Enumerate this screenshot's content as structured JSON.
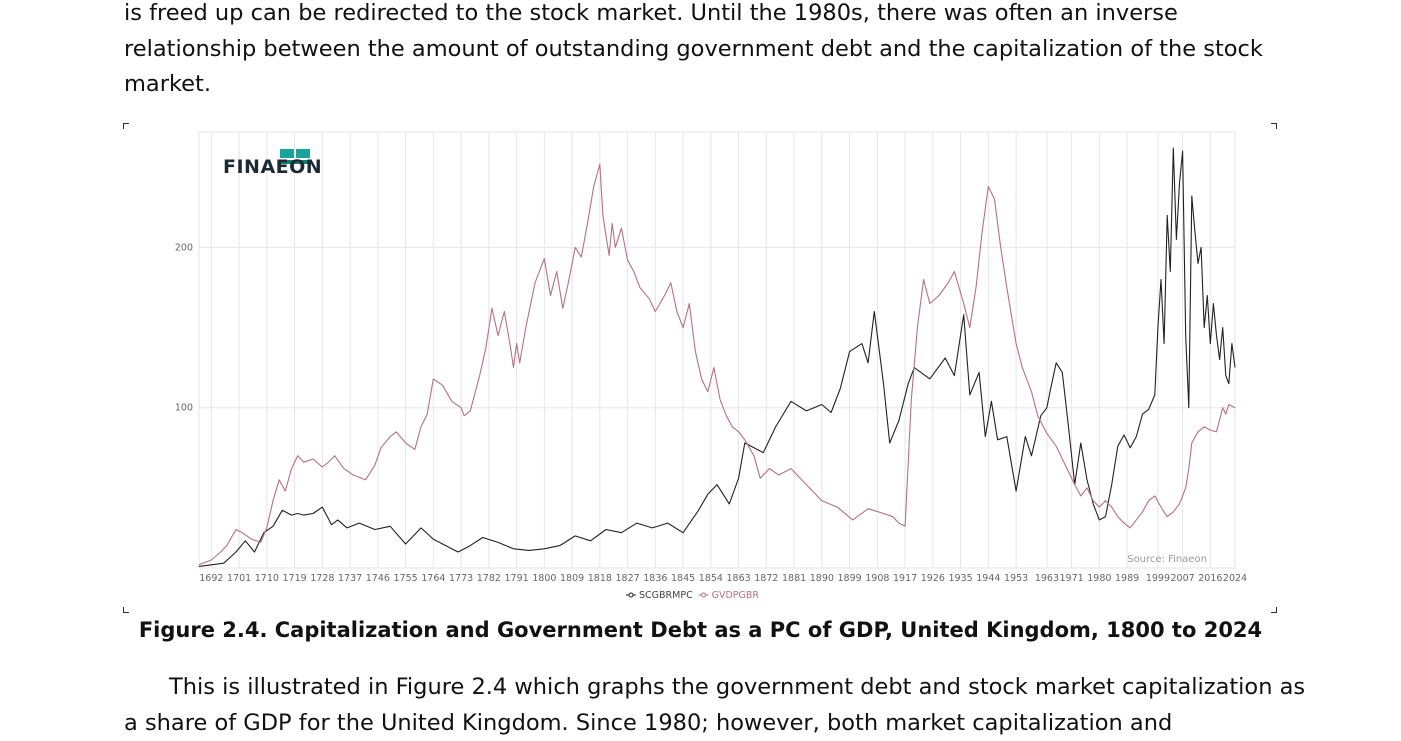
{
  "document": {
    "top_paragraph_lines": [
      "is freed up can be redirected to the stock market.  Until the 1980s, there was often an inverse",
      "relationship between the amount of outstanding government debt and the capitalization of the stock",
      "market."
    ],
    "caption": "Figure 2.4. Capitalization and Government Debt as a PC of GDP, United Kingdom, 1800 to 2024",
    "bottom_paragraph_lines": [
      "This is illustrated in Figure 2.4 which graphs the government debt and stock market capitalization as",
      "a share of GDP for the United Kingdom. Since 1980; however, both market capitalization and"
    ]
  },
  "figure": {
    "logo_text": "FINAEON",
    "source_note": "Source: Finaeon"
  },
  "chart_data": {
    "type": "line",
    "title": "",
    "xlabel": "",
    "ylabel": "",
    "xlim": [
      1688,
      2024
    ],
    "ylim": [
      0,
      272
    ],
    "y_ticks": [
      100,
      200
    ],
    "x_ticks": [
      "1692",
      "1701",
      "1710",
      "1719",
      "1728",
      "1737",
      "1746",
      "1755",
      "1764",
      "1773",
      "1782",
      "1791",
      "1800",
      "1809",
      "1818",
      "1827",
      "1836",
      "1845",
      "1854",
      "1863",
      "1872",
      "1881",
      "1890",
      "1899",
      "1908",
      "1917",
      "1926",
      "1935",
      "1944",
      "1953",
      "1963",
      "1971",
      "1980",
      "1989",
      "1999",
      "2007",
      "2016",
      "2024"
    ],
    "grid": true,
    "legend_position": "bottom-center",
    "series": [
      {
        "name": "SCGBRMPC",
        "color": "#222222",
        "x": [
          1688,
          1692,
          1696,
          1700,
          1703,
          1706,
          1709,
          1712,
          1715,
          1718,
          1720,
          1722,
          1725,
          1728,
          1731,
          1733,
          1736,
          1740,
          1745,
          1750,
          1755,
          1760,
          1764,
          1768,
          1772,
          1776,
          1780,
          1785,
          1790,
          1795,
          1800,
          1805,
          1810,
          1815,
          1820,
          1825,
          1830,
          1835,
          1840,
          1845,
          1850,
          1853,
          1856,
          1860,
          1863,
          1865,
          1868,
          1871,
          1875,
          1880,
          1885,
          1890,
          1893,
          1896,
          1899,
          1903,
          1905,
          1907,
          1910,
          1912,
          1915,
          1918,
          1920,
          1925,
          1930,
          1933,
          1936,
          1938,
          1941,
          1943,
          1945,
          1947,
          1950,
          1953,
          1956,
          1958,
          1961,
          1963,
          1964,
          1966,
          1968,
          1970,
          1972,
          1974,
          1976,
          1978,
          1980,
          1982,
          1984,
          1986,
          1988,
          1990,
          1992,
          1994,
          1996,
          1998,
          1999,
          2000,
          2001,
          2002,
          2003,
          2004,
          2005,
          2006,
          2007,
          2008,
          2009,
          2010,
          2011,
          2012,
          2013,
          2014,
          2015,
          2016,
          2017,
          2018,
          2019,
          2020,
          2021,
          2022,
          2023,
          2024
        ],
        "values": [
          1,
          2,
          3,
          10,
          17,
          10,
          22,
          26,
          36,
          33,
          34,
          33,
          34,
          38,
          27,
          30,
          25,
          28,
          24,
          26,
          15,
          25,
          18,
          14,
          10,
          14,
          19,
          16,
          12,
          11,
          12,
          14,
          20,
          17,
          24,
          22,
          28,
          25,
          28,
          22,
          36,
          46,
          52,
          40,
          56,
          78,
          75,
          72,
          88,
          104,
          98,
          102,
          97,
          112,
          135,
          140,
          128,
          160,
          115,
          78,
          92,
          115,
          125,
          118,
          131,
          120,
          158,
          108,
          122,
          82,
          104,
          80,
          82,
          48,
          82,
          70,
          95,
          100,
          110,
          128,
          122,
          88,
          52,
          78,
          55,
          40,
          30,
          32,
          52,
          76,
          83,
          75,
          82,
          96,
          99,
          108,
          150,
          180,
          140,
          220,
          185,
          262,
          205,
          240,
          260,
          145,
          100,
          232,
          210,
          190,
          200,
          150,
          170,
          140,
          165,
          145,
          130,
          150,
          120,
          115,
          140,
          125
        ]
      },
      {
        "name": "GVDPGBR",
        "color": "#b5727f",
        "x": [
          1688,
          1692,
          1695,
          1697,
          1700,
          1702,
          1705,
          1708,
          1710,
          1712,
          1714,
          1716,
          1718,
          1720,
          1722,
          1725,
          1728,
          1730,
          1732,
          1735,
          1738,
          1742,
          1745,
          1747,
          1750,
          1752,
          1755,
          1758,
          1760,
          1762,
          1764,
          1767,
          1770,
          1773,
          1774,
          1776,
          1779,
          1781,
          1783,
          1785,
          1787,
          1789,
          1790,
          1791,
          1792,
          1794,
          1797,
          1800,
          1802,
          1804,
          1806,
          1808,
          1810,
          1812,
          1814,
          1816,
          1818,
          1819,
          1821,
          1822,
          1823,
          1825,
          1827,
          1829,
          1831,
          1834,
          1836,
          1839,
          1841,
          1843,
          1845,
          1847,
          1849,
          1851,
          1853,
          1855,
          1857,
          1859,
          1861,
          1863,
          1865,
          1868,
          1870,
          1873,
          1876,
          1880,
          1885,
          1890,
          1895,
          1900,
          1905,
          1910,
          1913,
          1915,
          1917,
          1919,
          1921,
          1923,
          1925,
          1928,
          1931,
          1933,
          1936,
          1938,
          1940,
          1942,
          1944,
          1946,
          1948,
          1950,
          1953,
          1955,
          1958,
          1960,
          1963,
          1966,
          1970,
          1972,
          1974,
          1976,
          1978,
          1980,
          1982,
          1984,
          1986,
          1988,
          1990,
          1992,
          1994,
          1996,
          1998,
          2000,
          2002,
          2004,
          2006,
          2008,
          2009,
          2010,
          2012,
          2014,
          2016,
          2018,
          2020,
          2021,
          2022,
          2024
        ],
        "values": [
          2,
          5,
          10,
          14,
          24,
          22,
          18,
          16,
          25,
          42,
          55,
          48,
          62,
          70,
          66,
          68,
          63,
          66,
          70,
          62,
          58,
          55,
          64,
          75,
          82,
          85,
          78,
          74,
          88,
          96,
          118,
          114,
          104,
          100,
          95,
          98,
          120,
          137,
          162,
          145,
          160,
          138,
          125,
          140,
          128,
          150,
          178,
          193,
          170,
          185,
          162,
          180,
          200,
          194,
          215,
          238,
          252,
          220,
          195,
          215,
          200,
          212,
          192,
          185,
          175,
          168,
          160,
          170,
          178,
          160,
          150,
          165,
          135,
          118,
          110,
          125,
          105,
          95,
          88,
          85,
          80,
          70,
          56,
          62,
          58,
          62,
          52,
          42,
          38,
          30,
          37,
          34,
          32,
          28,
          26,
          105,
          150,
          180,
          165,
          170,
          178,
          185,
          165,
          150,
          175,
          210,
          238,
          230,
          200,
          175,
          140,
          125,
          110,
          95,
          84,
          76,
          60,
          52,
          45,
          50,
          42,
          38,
          42,
          38,
          32,
          28,
          25,
          30,
          35,
          42,
          45,
          38,
          32,
          35,
          40,
          50,
          62,
          78,
          85,
          88,
          86,
          85,
          100,
          96,
          102,
          100
        ]
      }
    ]
  }
}
